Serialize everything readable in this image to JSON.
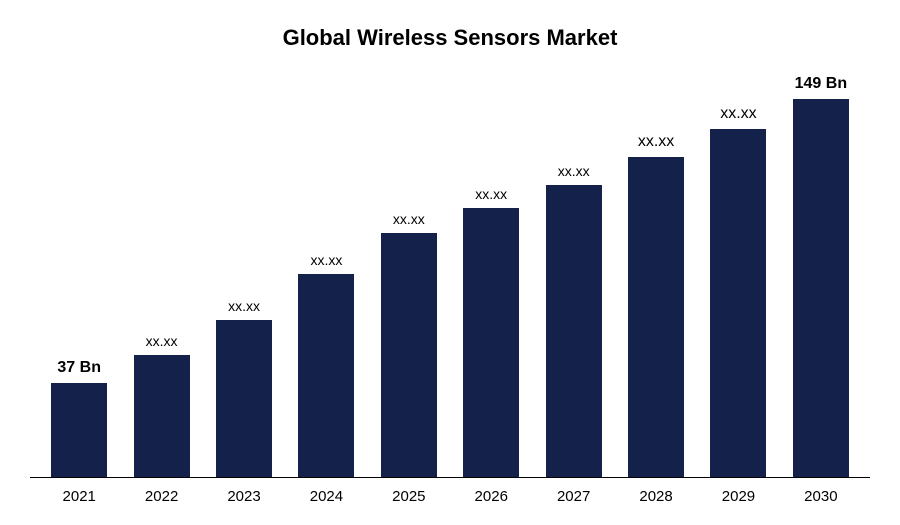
{
  "chart": {
    "type": "bar",
    "title": "Global Wireless Sensors Market",
    "title_fontsize": 22,
    "title_fontweight": "bold",
    "title_color": "#000000",
    "background_color": "#ffffff",
    "bar_color": "#14214b",
    "axis_line_color": "#000000",
    "categories": [
      "2021",
      "2022",
      "2023",
      "2024",
      "2025",
      "2026",
      "2027",
      "2028",
      "2029",
      "2030"
    ],
    "values": [
      37,
      48,
      62,
      80,
      96,
      106,
      115,
      126,
      137,
      149
    ],
    "ylim": [
      0,
      160
    ],
    "value_labels": [
      "37 Bn",
      "xx.xx",
      "xx.xx",
      "xx.xx",
      "xx.xx",
      "xx.xx",
      "xx.xx",
      "xx.xx",
      "xx.xx",
      "149 Bn"
    ],
    "value_label_bold": [
      true,
      false,
      false,
      false,
      false,
      false,
      false,
      false,
      false,
      true
    ],
    "value_label_fontsize": 14,
    "value_label_bold_fontsize": 16,
    "x_tick_fontsize": 15,
    "bar_width_ratio": 0.68
  }
}
